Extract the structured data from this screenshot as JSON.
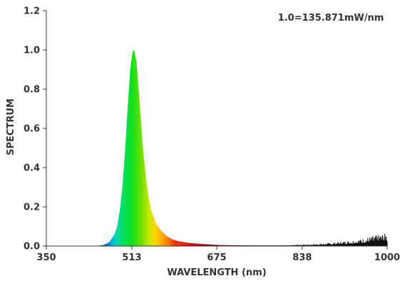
{
  "chart_data": {
    "type": "area",
    "title": "",
    "annotation": "1.0=135.871mW/nm",
    "xlabel": "WAVELENGTH (nm)",
    "ylabel": "SPECTRUM",
    "xlim": [
      350,
      1000
    ],
    "ylim": [
      0,
      1.2
    ],
    "x_ticks": [
      "350",
      "513",
      "675",
      "838",
      "1000"
    ],
    "y_ticks": [
      "0.0",
      "0.2",
      "0.4",
      "0.6",
      "0.8",
      "1.0",
      "1.2"
    ],
    "x_tick_values": [
      350,
      513,
      675,
      838,
      1000
    ],
    "y_tick_values": [
      0,
      0.2,
      0.4,
      0.6,
      0.8,
      1.0,
      1.2
    ],
    "grid": false,
    "fill": "wavelength-color gradient",
    "series": [
      {
        "x": [
          350,
          380,
          420,
          450,
          460,
          470,
          480,
          485,
          490,
          495,
          500,
          505,
          510,
          515,
          518,
          522,
          526,
          530,
          535,
          540,
          545,
          550,
          560,
          570,
          580,
          590,
          600,
          620,
          640,
          660,
          680,
          700,
          750,
          800,
          850,
          900,
          950,
          980,
          1000
        ],
        "values": [
          0.0,
          0.0,
          0.0,
          0.002,
          0.006,
          0.02,
          0.06,
          0.1,
          0.18,
          0.3,
          0.48,
          0.7,
          0.9,
          1.0,
          0.99,
          0.94,
          0.8,
          0.65,
          0.48,
          0.35,
          0.25,
          0.18,
          0.11,
          0.075,
          0.05,
          0.035,
          0.026,
          0.017,
          0.012,
          0.008,
          0.005,
          0.004,
          0.003,
          0.003,
          0.004,
          0.008,
          0.016,
          0.025,
          0.03
        ]
      }
    ],
    "colors": {
      "axis": "#333333",
      "tail": "#111111"
    }
  }
}
